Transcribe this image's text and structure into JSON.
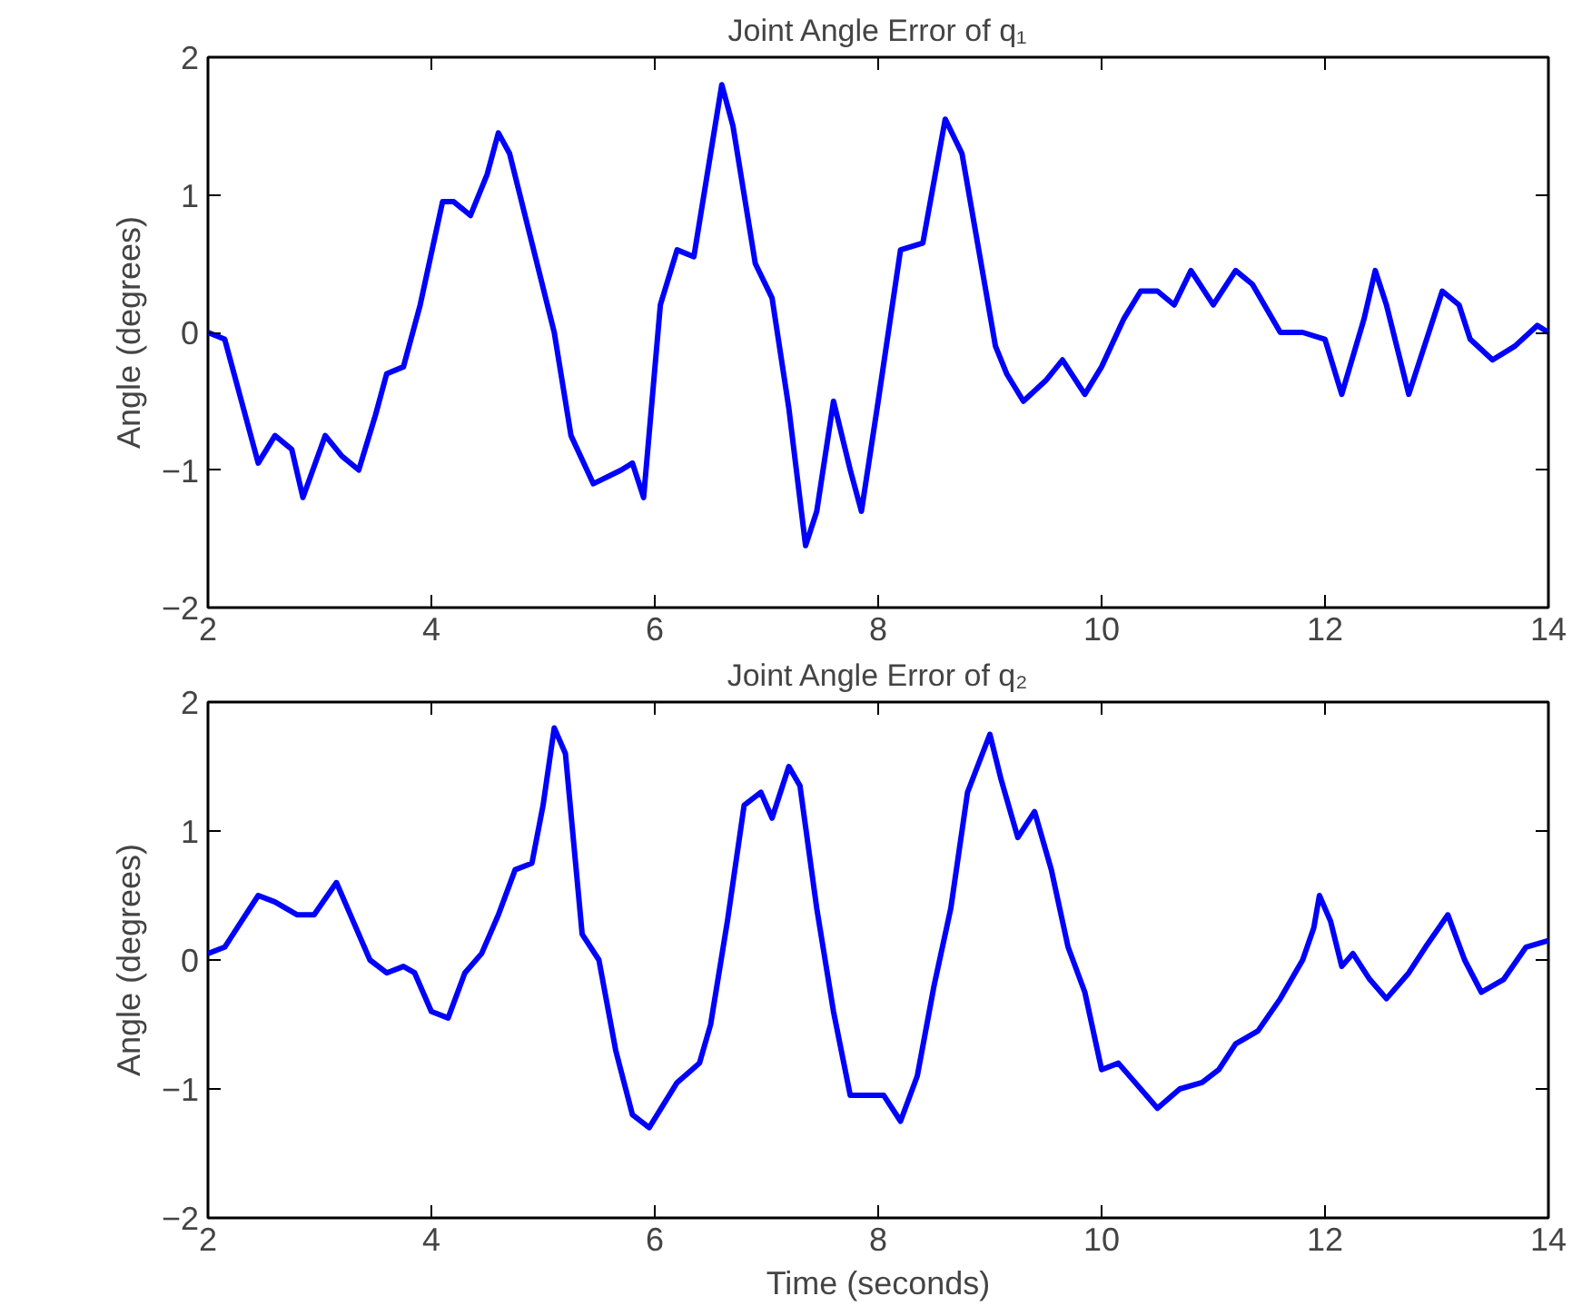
{
  "chart_data": [
    {
      "type": "line",
      "title": "Joint Angle Error of q₁",
      "ylabel": "Angle (degrees)",
      "x": [
        2.0,
        2.15,
        2.3,
        2.45,
        2.6,
        2.75,
        2.85,
        3.05,
        3.2,
        3.35,
        3.5,
        3.6,
        3.75,
        3.9,
        4.1,
        4.2,
        4.35,
        4.5,
        4.6,
        4.7,
        4.9,
        5.1,
        5.25,
        5.45,
        5.7,
        5.8,
        5.9,
        6.05,
        6.2,
        6.35,
        6.5,
        6.6,
        6.7,
        6.9,
        7.05,
        7.2,
        7.35,
        7.45,
        7.6,
        7.75,
        7.85,
        8.0,
        8.2,
        8.4,
        8.6,
        8.75,
        8.9,
        9.05,
        9.15,
        9.3,
        9.5,
        9.65,
        9.85,
        10.0,
        10.2,
        10.35,
        10.5,
        10.65,
        10.8,
        11.0,
        11.2,
        11.35,
        11.6,
        11.8,
        12.0,
        12.15,
        12.35,
        12.45,
        12.55,
        12.75,
        12.95,
        13.05,
        13.2,
        13.3,
        13.5,
        13.7,
        13.9,
        14.0
      ],
      "series": [
        {
          "color": "#0000ff",
          "values": [
            0.0,
            -0.05,
            -0.5,
            -0.95,
            -0.75,
            -0.85,
            -1.2,
            -0.75,
            -0.9,
            -1.0,
            -0.6,
            -0.3,
            -0.25,
            0.2,
            0.95,
            0.95,
            0.85,
            1.15,
            1.45,
            1.3,
            0.65,
            0.0,
            -0.75,
            -1.1,
            -1.0,
            -0.95,
            -1.2,
            0.2,
            0.6,
            0.55,
            1.3,
            1.8,
            1.5,
            0.5,
            0.25,
            -0.55,
            -1.55,
            -1.3,
            -0.5,
            -1.0,
            -1.3,
            -0.5,
            0.6,
            0.65,
            1.55,
            1.3,
            0.6,
            -0.1,
            -0.3,
            -0.5,
            -0.35,
            -0.2,
            -0.45,
            -0.25,
            0.1,
            0.3,
            0.3,
            0.2,
            0.45,
            0.2,
            0.45,
            0.35,
            0.0,
            0.0,
            -0.05,
            -0.45,
            0.1,
            0.45,
            0.2,
            -0.45,
            0.05,
            0.3,
            0.2,
            -0.05,
            -0.2,
            -0.1,
            0.05,
            0.0
          ]
        }
      ],
      "xlim": [
        2,
        14
      ],
      "ylim": [
        -2,
        2
      ],
      "xticks": [
        2,
        4,
        6,
        8,
        10,
        12,
        14
      ],
      "yticks": [
        -2,
        -1,
        0,
        1,
        2
      ],
      "line_style": "solid"
    },
    {
      "type": "line",
      "title": "Joint Angle Error of q₂",
      "ylabel": "Angle (degrees)",
      "xlabel": "Time (seconds)",
      "x": [
        2.0,
        2.15,
        2.3,
        2.45,
        2.6,
        2.8,
        2.95,
        3.15,
        3.3,
        3.45,
        3.6,
        3.75,
        3.85,
        4.0,
        4.15,
        4.3,
        4.45,
        4.6,
        4.75,
        4.9,
        5.0,
        5.1,
        5.2,
        5.35,
        5.5,
        5.65,
        5.8,
        5.95,
        6.2,
        6.4,
        6.5,
        6.65,
        6.8,
        6.95,
        7.05,
        7.2,
        7.3,
        7.45,
        7.6,
        7.75,
        7.9,
        8.05,
        8.2,
        8.35,
        8.5,
        8.65,
        8.8,
        9.0,
        9.1,
        9.25,
        9.4,
        9.55,
        9.7,
        9.85,
        10.0,
        10.15,
        10.3,
        10.5,
        10.7,
        10.9,
        11.05,
        11.2,
        11.4,
        11.6,
        11.8,
        11.9,
        11.95,
        12.05,
        12.15,
        12.25,
        12.4,
        12.55,
        12.75,
        12.9,
        13.1,
        13.25,
        13.4,
        13.6,
        13.8,
        14.0
      ],
      "series": [
        {
          "color": "#0000ff",
          "values": [
            0.05,
            0.1,
            0.3,
            0.5,
            0.45,
            0.35,
            0.35,
            0.6,
            0.3,
            0.0,
            -0.1,
            -0.05,
            -0.1,
            -0.4,
            -0.45,
            -0.1,
            0.05,
            0.35,
            0.7,
            0.75,
            1.2,
            1.8,
            1.6,
            0.2,
            0.0,
            -0.7,
            -1.2,
            -1.3,
            -0.95,
            -0.8,
            -0.5,
            0.3,
            1.2,
            1.3,
            1.1,
            1.5,
            1.35,
            0.4,
            -0.4,
            -1.05,
            -1.05,
            -1.05,
            -1.25,
            -0.9,
            -0.2,
            0.4,
            1.3,
            1.75,
            1.4,
            0.95,
            1.15,
            0.7,
            0.1,
            -0.25,
            -0.85,
            -0.8,
            -0.95,
            -1.15,
            -1.0,
            -0.95,
            -0.85,
            -0.65,
            -0.55,
            -0.3,
            0.0,
            0.25,
            0.5,
            0.3,
            -0.05,
            0.05,
            -0.15,
            -0.3,
            -0.1,
            0.1,
            0.35,
            0.0,
            -0.25,
            -0.15,
            0.1,
            0.15
          ]
        }
      ],
      "xlim": [
        2,
        14
      ],
      "ylim": [
        -2,
        2
      ],
      "xticks": [
        2,
        4,
        6,
        8,
        10,
        12,
        14
      ],
      "yticks": [
        -2,
        -1,
        0,
        1,
        2
      ],
      "line_style": "solid"
    }
  ]
}
